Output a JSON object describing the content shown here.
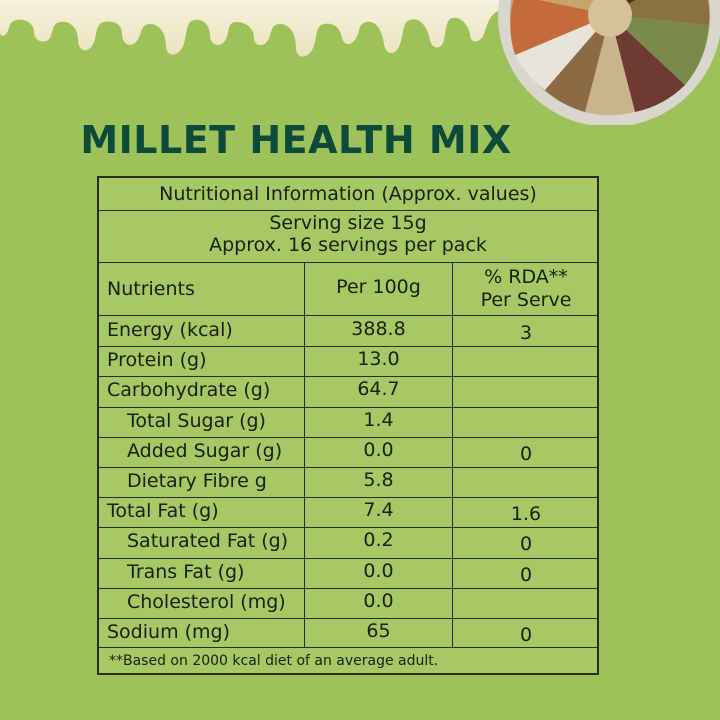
{
  "title": "MILLET HEALTH MIX",
  "table": {
    "heading": "Nutritional Information (Approx. values)",
    "serving_line_1": "Serving size 15g",
    "serving_line_2": "Approx. 16 servings per pack",
    "col_nutrients": "Nutrients",
    "col_per100": "Per 100g",
    "col_rda_line1": "% RDA**",
    "col_rda_line2": "Per Serve",
    "rows": [
      {
        "name": "Energy (kcal)",
        "per100": "388.8",
        "rda": "3"
      },
      {
        "name": "Protein (g)",
        "per100": "13.0",
        "rda": ""
      },
      {
        "name": "Carbohydrate (g)",
        "per100": "64.7",
        "rda": ""
      },
      {
        "name": "Total Sugar (g)",
        "per100": "1.4",
        "rda": ""
      },
      {
        "name": "Added Sugar (g)",
        "per100": "0.0",
        "rda": "0"
      },
      {
        "name": "Dietary Fibre g",
        "per100": "5.8",
        "rda": ""
      },
      {
        "name": "Total Fat (g)",
        "per100": "7.4",
        "rda": "1.6"
      },
      {
        "name": "Saturated Fat (g)",
        "per100": "0.2",
        "rda": "0"
      },
      {
        "name": "Trans Fat (g)",
        "per100": "0.0",
        "rda": "0"
      },
      {
        "name": "Cholesterol (mg)",
        "per100": "0.0",
        "rda": ""
      },
      {
        "name": "Sodium (mg)",
        "per100": "65",
        "rda": "0"
      }
    ],
    "footnote": "**Based on 2000 kcal diet of an average adult."
  },
  "colors": {
    "background": "#9dc25a",
    "title": "#0e4a3b",
    "rule": "#2a2d1c"
  }
}
